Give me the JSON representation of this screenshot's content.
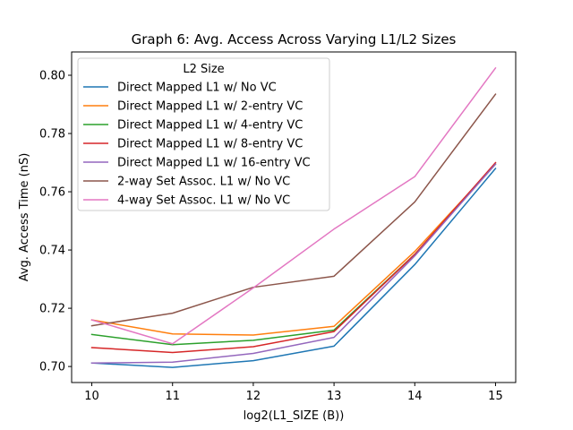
{
  "chart_data": {
    "type": "line",
    "title": "Graph 6: Avg. Access Across Varying L1/L2 Sizes",
    "xlabel": "log2(L1_SIZE (B))",
    "ylabel": "Avg. Access Time (nS)",
    "x": [
      10,
      11,
      12,
      13,
      14,
      15
    ],
    "xticks": [
      "10",
      "11",
      "12",
      "13",
      "14",
      "15"
    ],
    "xlim": [
      9.75,
      15.25
    ],
    "yticks": [
      "0.70",
      "0.72",
      "0.74",
      "0.76",
      "0.78",
      "0.80"
    ],
    "ytick_values": [
      0.7,
      0.72,
      0.74,
      0.76,
      0.78,
      0.8
    ],
    "ylim": [
      0.6945,
      0.808
    ],
    "grid": false,
    "legend": {
      "title": "L2 Size",
      "placement": "top-left"
    },
    "series": [
      {
        "name": "Direct Mapped L1 w/ No VC",
        "color": "#1f77b4",
        "values": [
          0.7012,
          0.6997,
          0.702,
          0.707,
          0.735,
          0.768
        ]
      },
      {
        "name": "Direct Mapped L1 w/ 2-entry VC",
        "color": "#ff7f0e",
        "values": [
          0.716,
          0.7112,
          0.7108,
          0.7138,
          0.7395,
          0.7695
        ]
      },
      {
        "name": "Direct Mapped L1 w/ 4-entry VC",
        "color": "#2ca02c",
        "values": [
          0.711,
          0.7075,
          0.709,
          0.7125,
          0.7385,
          0.7695
        ]
      },
      {
        "name": "Direct Mapped L1 w/ 8-entry VC",
        "color": "#d62728",
        "values": [
          0.7065,
          0.7048,
          0.7068,
          0.712,
          0.7385,
          0.77
        ]
      },
      {
        "name": "Direct Mapped L1 w/ 16-entry VC",
        "color": "#9467bd",
        "values": [
          0.7012,
          0.7015,
          0.7045,
          0.71,
          0.738,
          0.7695
        ]
      },
      {
        "name": "2-way Set Assoc. L1 w/ No VC",
        "color": "#8c564b",
        "values": [
          0.714,
          0.7183,
          0.7272,
          0.731,
          0.7565,
          0.7935
        ]
      },
      {
        "name": "4-way Set Assoc. L1 w/ No VC",
        "color": "#e377c2",
        "values": [
          0.716,
          0.7078,
          0.727,
          0.7472,
          0.7652,
          0.8025
        ]
      }
    ]
  }
}
